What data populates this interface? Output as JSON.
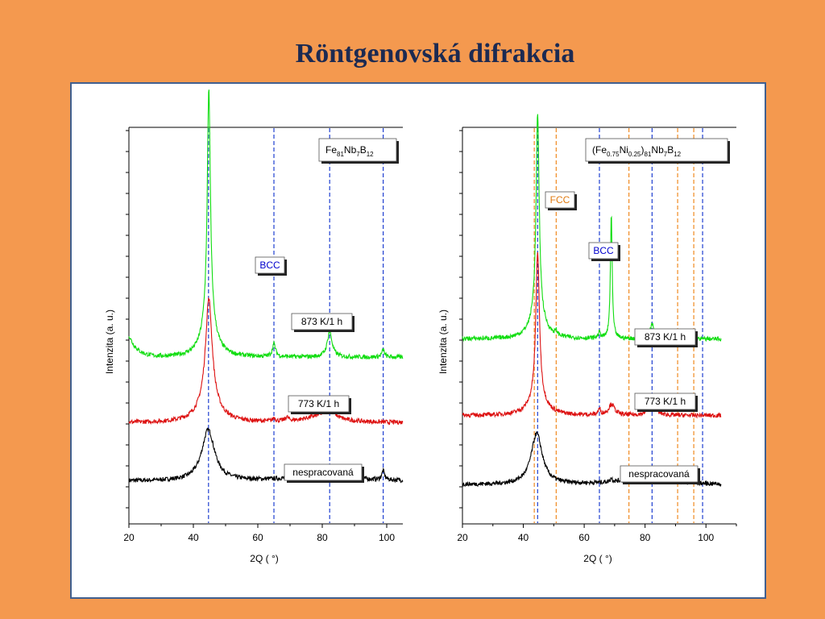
{
  "slide": {
    "title": "Röntgenovská  difrakcia"
  },
  "chart_data": [
    {
      "type": "line",
      "title_parts": [
        "Fe",
        "81",
        "Nb",
        "7",
        "B",
        "12"
      ],
      "xlabel": "2Q ( °)",
      "ylabel": "Intenzita (a. u.)",
      "xlim": [
        20,
        105
      ],
      "xticks": [
        20,
        40,
        60,
        80,
        100
      ],
      "phase_labels": [
        {
          "text": "BCC",
          "color": "#0000cc",
          "at_x": 65
        }
      ],
      "reference_lines": [
        {
          "phase": "BCC",
          "color": "#1f3fd0",
          "x": [
            44.7,
            65.0,
            82.3,
            98.9
          ]
        }
      ],
      "series": [
        {
          "name": "nespracovaná",
          "color": "#000000",
          "baseline": 0.06,
          "peaks": [
            [
              44.6,
              0.14,
              2.4
            ],
            [
              80,
              0.02,
              9
            ],
            [
              98.9,
              0.025,
              0.5
            ]
          ]
        },
        {
          "name": "773 K/1 h",
          "color": "#dd1111",
          "baseline": 0.22,
          "peaks": [
            [
              44.8,
              0.28,
              1.2
            ],
            [
              44.8,
              0.06,
              3.5
            ],
            [
              65,
              0.01,
              0.4
            ],
            [
              69,
              0.01,
              0.6
            ],
            [
              82.3,
              0.028,
              1.5
            ],
            [
              80,
              0.018,
              6
            ]
          ]
        },
        {
          "name": "873 K/1 h",
          "color": "#11dd11",
          "baseline": 0.4,
          "peaks": [
            [
              44.8,
              0.62,
              0.55
            ],
            [
              44.8,
              0.12,
              2.2
            ],
            [
              65,
              0.035,
              0.6
            ],
            [
              82.3,
              0.07,
              0.9
            ],
            [
              98.9,
              0.02,
              0.5
            ]
          ]
        }
      ]
    },
    {
      "type": "line",
      "title_parts": [
        "(Fe",
        "0.75",
        "Ni",
        "0.25",
        ")",
        "81",
        "Nb",
        "7",
        "B",
        "12"
      ],
      "xlabel": "2Q ( °)",
      "ylabel": "Intenzita (a. u.)",
      "xlim": [
        20,
        110
      ],
      "xticks": [
        20,
        40,
        60,
        80,
        100
      ],
      "phase_labels": [
        {
          "text": "FCC",
          "color": "#e07a10",
          "at_x": 50.8
        },
        {
          "text": "BCC",
          "color": "#0000cc",
          "at_x": 65
        }
      ],
      "reference_lines": [
        {
          "phase": "BCC",
          "color": "#1f3fd0",
          "x": [
            44.7,
            65.0,
            82.3,
            98.9
          ]
        },
        {
          "phase": "FCC",
          "color": "#f08a20",
          "x": [
            43.6,
            50.8,
            74.7,
            90.7,
            96.0
          ]
        }
      ],
      "series": [
        {
          "name": "nespracovaná",
          "color": "#000000",
          "baseline": 0.05,
          "peaks": [
            [
              44.4,
              0.14,
              2.2
            ],
            [
              80,
              0.02,
              9
            ],
            [
              68.9,
              0.01,
              0.4
            ]
          ]
        },
        {
          "name": "773 K/1 h",
          "color": "#dd1111",
          "baseline": 0.24,
          "peaks": [
            [
              44.7,
              0.4,
              0.7
            ],
            [
              44.7,
              0.05,
              3
            ],
            [
              65,
              0.015,
              0.5
            ],
            [
              69,
              0.03,
              1.2
            ],
            [
              82.3,
              0.04,
              1.2
            ]
          ]
        },
        {
          "name": "873 K/1 h",
          "color": "#11dd11",
          "baseline": 0.45,
          "peaks": [
            [
              44.7,
              0.55,
              0.6
            ],
            [
              44.7,
              0.07,
              2.5
            ],
            [
              50.8,
              0.01,
              0.5
            ],
            [
              65,
              0.015,
              0.5
            ],
            [
              68.9,
              0.34,
              0.35
            ],
            [
              82.3,
              0.04,
              0.8
            ]
          ]
        }
      ]
    }
  ]
}
